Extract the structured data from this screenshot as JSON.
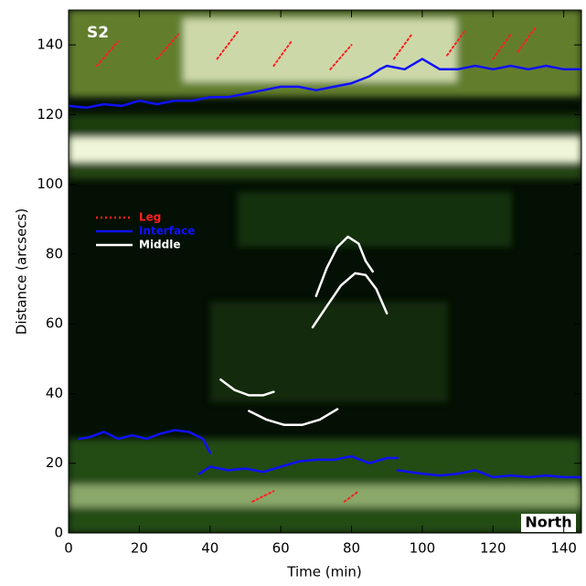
{
  "chart_data": {
    "type": "line",
    "xlabel": "Time (min)",
    "ylabel": "Distance (arcsecs)",
    "annotations": [
      "S2",
      "North"
    ],
    "xlim": [
      0,
      145
    ],
    "xticks": [
      0,
      20,
      40,
      60,
      80,
      100,
      120,
      140
    ],
    "ylim": [
      0,
      150
    ],
    "yticks": [
      0,
      20,
      40,
      60,
      80,
      100,
      120,
      140
    ],
    "series": [
      {
        "name": "Leg",
        "color": "#ff2020",
        "dash": "dotted",
        "x": [
          8,
          14,
          null,
          25,
          31,
          null,
          42,
          48,
          null,
          58,
          63,
          null,
          74,
          80,
          null,
          92,
          97,
          null,
          107,
          112,
          null,
          120,
          125,
          null,
          127,
          132,
          null,
          52,
          58,
          null,
          78,
          82
        ],
        "values": [
          134,
          141,
          null,
          136,
          143,
          null,
          136,
          144,
          null,
          134,
          141,
          null,
          133,
          140,
          null,
          136,
          143,
          null,
          137,
          144,
          null,
          136,
          143,
          null,
          138,
          145,
          null,
          9,
          12,
          null,
          9,
          12
        ]
      },
      {
        "name": "Interface",
        "color": "#1010ff",
        "dash": "solid",
        "x": [
          0,
          5,
          10,
          15,
          20,
          25,
          30,
          35,
          40,
          45,
          50,
          55,
          60,
          65,
          70,
          75,
          80,
          85,
          88,
          90,
          95,
          100,
          105,
          110,
          115,
          120,
          125,
          130,
          135,
          140,
          145,
          null,
          3,
          6,
          10,
          14,
          18,
          22,
          26,
          30,
          34,
          38,
          40,
          null,
          37,
          40,
          45,
          50,
          55,
          60,
          65,
          70,
          75,
          80,
          85,
          90,
          93,
          null,
          93,
          100,
          105,
          110,
          115,
          120,
          125,
          130,
          135,
          140,
          145
        ],
        "values": [
          122.5,
          122,
          123,
          122.5,
          124,
          123,
          124,
          124,
          125,
          125,
          126,
          127,
          128,
          128,
          127,
          128,
          129,
          131,
          133,
          134,
          133,
          136,
          133,
          133,
          134,
          133,
          134,
          133,
          134,
          133,
          133,
          null,
          27,
          27.5,
          29,
          27,
          28,
          27,
          28.5,
          29.5,
          29,
          27,
          23,
          null,
          17,
          19,
          18,
          18.5,
          17.5,
          19,
          20.5,
          21,
          21,
          22,
          20,
          21.5,
          21.5,
          null,
          18,
          17,
          16.5,
          17,
          18,
          16,
          16.5,
          16,
          16.5,
          16,
          16
        ]
      },
      {
        "name": "Middle",
        "color": "#ffffff",
        "dash": "solid",
        "x": [
          70,
          73,
          76,
          79,
          82,
          84,
          86,
          null,
          69,
          73,
          77,
          81,
          84,
          87,
          90,
          null,
          43,
          47,
          51,
          55,
          58,
          null,
          51,
          56,
          61,
          66,
          71,
          76
        ],
        "values": [
          68,
          76,
          82,
          85,
          83,
          78,
          75,
          null,
          59,
          65,
          71,
          74.5,
          74,
          70,
          63,
          null,
          44,
          41,
          39.5,
          39.5,
          40.5,
          null,
          35,
          32.5,
          31,
          31,
          32.5,
          35.5
        ]
      }
    ]
  }
}
